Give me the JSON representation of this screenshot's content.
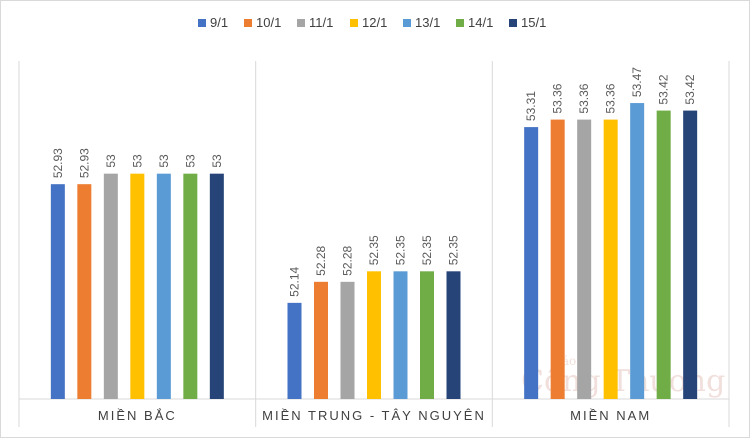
{
  "chart_data": {
    "type": "bar",
    "title": "",
    "xlabel": "",
    "ylabel": "",
    "categories": [
      "MIỀN BẮC",
      "MIỀN TRUNG - TÂY NGUYÊN",
      "MIỀN NAM"
    ],
    "series": [
      {
        "name": "9/1",
        "color": "#4472C4",
        "values": [
          52.93,
          52.14,
          53.31
        ]
      },
      {
        "name": "10/1",
        "color": "#ED7D31",
        "values": [
          52.93,
          52.28,
          53.36
        ]
      },
      {
        "name": "11/1",
        "color": "#A5A5A5",
        "values": [
          53,
          52.28,
          53.36
        ]
      },
      {
        "name": "12/1",
        "color": "#FFC000",
        "values": [
          53,
          52.35,
          53.36
        ]
      },
      {
        "name": "13/1",
        "color": "#5B9BD5",
        "values": [
          53,
          52.35,
          53.47
        ]
      },
      {
        "name": "14/1",
        "color": "#70AD47",
        "values": [
          53,
          52.35,
          53.42
        ]
      },
      {
        "name": "15/1",
        "color": "#264478",
        "values": [
          53,
          52.35,
          53.42
        ]
      }
    ],
    "ylim": [
      51.5,
      53.75
    ],
    "grid": false,
    "legend": "top-center",
    "data_labels": true,
    "category_separators": true
  },
  "watermark": {
    "main": "Công Thương",
    "small": "Báo"
  }
}
